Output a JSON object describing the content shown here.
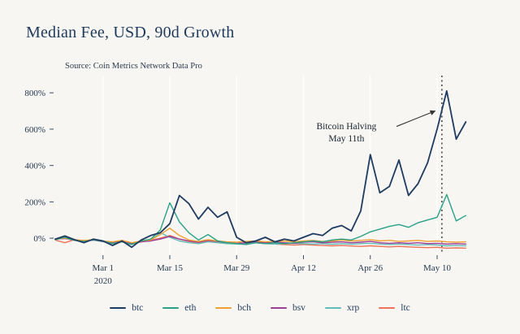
{
  "title": "Median Fee, USD, 90d Growth",
  "source": "Source: Coin Metrics Network Data Pro",
  "colors": {
    "background": "#f7f6f2",
    "title": "#1d3a5c",
    "gridline": "#ffffff",
    "halving_line": "#222222"
  },
  "chart_data": {
    "type": "line",
    "title": "Median Fee, USD, 90d Growth",
    "subtitle": "Source: Coin Metrics Network Data Pro",
    "x_unit": "days since 2020-02-20",
    "x": [
      0,
      2,
      4,
      6,
      8,
      10,
      12,
      14,
      16,
      18,
      20,
      22,
      24,
      26,
      28,
      30,
      32,
      34,
      36,
      38,
      40,
      42,
      44,
      46,
      48,
      50,
      52,
      54,
      56,
      58,
      60,
      62,
      64,
      66,
      68,
      70,
      72,
      74,
      76,
      78,
      80,
      82,
      84,
      86
    ],
    "xlim": [
      0,
      88
    ],
    "ylim": [
      -80,
      850
    ],
    "grid": "vertical-white",
    "legend_position": "bottom-center",
    "yticks": [
      {
        "value": 0,
        "label": "0%"
      },
      {
        "value": 200,
        "label": "200%"
      },
      {
        "value": 400,
        "label": "400%"
      },
      {
        "value": 600,
        "label": "600%"
      },
      {
        "value": 800,
        "label": "800%"
      }
    ],
    "xticks": [
      {
        "day": 10,
        "label": "Mar 1",
        "sublabel": "2020"
      },
      {
        "day": 24,
        "label": "Mar 15",
        "sublabel": ""
      },
      {
        "day": 38,
        "label": "Mar 29",
        "sublabel": ""
      },
      {
        "day": 52,
        "label": "Apr 12",
        "sublabel": ""
      },
      {
        "day": 66,
        "label": "Apr 26",
        "sublabel": ""
      },
      {
        "day": 80,
        "label": "May 10",
        "sublabel": ""
      }
    ],
    "vline": {
      "day": 81,
      "style": "dotted",
      "color": "#222222",
      "meaning": "Bitcoin Halving May 11th"
    },
    "annotation": {
      "lines": [
        "Bitcoin Halving",
        "May 11th"
      ],
      "day": 61,
      "value": 600,
      "arrow": {
        "from_day": 71.5,
        "from_value": 615,
        "to_day": 79.6,
        "to_value": 700
      }
    },
    "series": [
      {
        "name": "btc",
        "color": "#1f3b61",
        "values": [
          -5,
          12,
          -8,
          -25,
          -5,
          -15,
          -40,
          -15,
          -50,
          -10,
          15,
          30,
          80,
          235,
          190,
          105,
          170,
          115,
          145,
          5,
          -25,
          -15,
          5,
          -20,
          -5,
          -15,
          5,
          25,
          15,
          55,
          70,
          40,
          150,
          460,
          250,
          285,
          430,
          235,
          300,
          415,
          600,
          810,
          545,
          640
        ]
      },
      {
        "name": "eth",
        "color": "#2aa186",
        "values": [
          -8,
          5,
          -12,
          -18,
          -10,
          -15,
          -30,
          -20,
          -35,
          -15,
          -5,
          45,
          195,
          90,
          30,
          -10,
          20,
          -15,
          -25,
          -30,
          -35,
          -25,
          -30,
          -25,
          -30,
          -25,
          -20,
          -15,
          -20,
          -10,
          -5,
          -10,
          10,
          35,
          50,
          65,
          75,
          60,
          85,
          100,
          115,
          240,
          95,
          125
        ]
      },
      {
        "name": "bch",
        "color": "#f0a030",
        "values": [
          -5,
          0,
          -8,
          -12,
          -8,
          -15,
          -20,
          -12,
          -25,
          -15,
          -10,
          20,
          55,
          15,
          -10,
          -18,
          -8,
          -15,
          -20,
          -22,
          -18,
          -15,
          -20,
          -18,
          -15,
          -20,
          -15,
          -12,
          -18,
          -15,
          -10,
          -15,
          -12,
          -8,
          -15,
          -12,
          -18,
          -15,
          -12,
          -18,
          -15,
          -20,
          -22,
          -20
        ]
      },
      {
        "name": "bsv",
        "color": "#9b3d96",
        "values": [
          -5,
          -2,
          -10,
          -15,
          -10,
          -18,
          -22,
          -15,
          -28,
          -20,
          -15,
          -5,
          10,
          -5,
          -15,
          -22,
          -12,
          -18,
          -25,
          -28,
          -25,
          -20,
          -25,
          -22,
          -25,
          -28,
          -22,
          -20,
          -25,
          -22,
          -20,
          -25,
          -22,
          -18,
          -25,
          -28,
          -25,
          -28,
          -25,
          -30,
          -28,
          -32,
          -30,
          -32
        ]
      },
      {
        "name": "xrp",
        "color": "#62bdb8",
        "values": [
          -5,
          2,
          -10,
          -15,
          -10,
          -20,
          -25,
          -15,
          -30,
          -20,
          -10,
          30,
          5,
          -15,
          -25,
          -30,
          -20,
          -25,
          -30,
          -32,
          -30,
          -25,
          -30,
          -32,
          -30,
          -28,
          -30,
          -32,
          -30,
          -33,
          -30,
          -33,
          -30,
          -28,
          -32,
          -35,
          -32,
          -35,
          -38,
          -35,
          -38,
          -42,
          -40,
          -42
        ]
      },
      {
        "name": "ltc",
        "color": "#ed7257",
        "values": [
          -10,
          -25,
          -8,
          -15,
          -10,
          -18,
          -25,
          -15,
          -30,
          -20,
          -12,
          0,
          15,
          -5,
          -18,
          -25,
          -15,
          -22,
          -28,
          -30,
          -28,
          -25,
          -30,
          -32,
          -35,
          -38,
          -35,
          -38,
          -40,
          -42,
          -40,
          -43,
          -45,
          -42,
          -45,
          -48,
          -45,
          -48,
          -50,
          -52,
          -50,
          -55,
          -53,
          -55
        ]
      }
    ]
  }
}
